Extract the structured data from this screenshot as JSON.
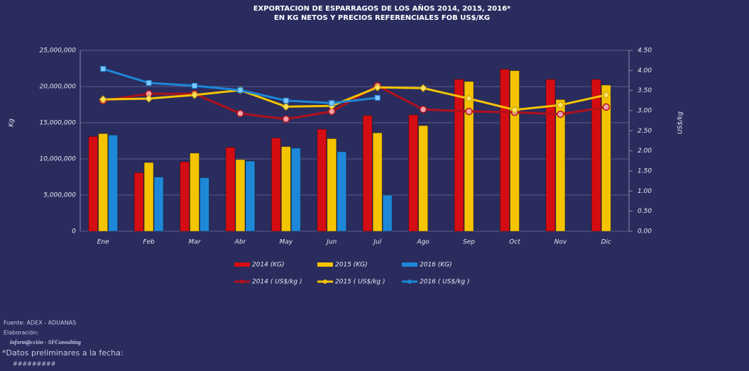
{
  "chart_data": {
    "type": "bar-line",
    "title": "EXPORTACION DE ESPARRAGOS DE LOS AÑOS 2014, 2015, 2016*",
    "subtitle": "EN KG NETOS Y PRECIOS REFERENCIALES FOB US$/KG",
    "y_label": "Kg",
    "y2_label": "US$/kg",
    "categories": [
      "Ene",
      "Feb",
      "Mar",
      "Abr",
      "May",
      "Jun",
      "Jul",
      "Ago",
      "Sep",
      "Oct",
      "Nov",
      "Dic"
    ],
    "ylim": [
      0,
      25000000
    ],
    "yticks": [
      0,
      {
        "value": 5000000,
        "label": "5,000,000"
      },
      {
        "value": 10000000,
        "label": "10,000,000"
      },
      {
        "value": 15000000,
        "label": "15,000,000"
      },
      {
        "value": 20000000,
        "label": "20,000,000"
      },
      {
        "value": 25000000,
        "label": "25,000,000"
      }
    ],
    "y2lim": [
      0,
      4.5
    ],
    "y2ticks": [
      {
        "value": 0,
        "label": "0.00"
      },
      {
        "value": 0.5,
        "label": "0.50"
      },
      {
        "value": 1,
        "label": "1.00"
      },
      {
        "value": 1.5,
        "label": "1.50"
      },
      {
        "value": 2,
        "label": "2.00"
      },
      {
        "value": 2.5,
        "label": "2.50"
      },
      {
        "value": 3,
        "label": "3.00"
      },
      {
        "value": 3.5,
        "label": "3.50"
      },
      {
        "value": 4,
        "label": "4.00"
      },
      {
        "value": 4.5,
        "label": "4.50"
      }
    ],
    "grid": true,
    "series": [
      {
        "name": "2014 (KG)",
        "kind": "bar",
        "color": "#d40d12",
        "values": [
          13100000,
          8100000,
          9600000,
          11600000,
          12900000,
          14100000,
          16000000,
          16100000,
          21000000,
          22400000,
          21000000,
          21000000
        ]
      },
      {
        "name": "2015 (KG)",
        "kind": "bar",
        "color": "#f5c400",
        "values": [
          13500000,
          9500000,
          10800000,
          9900000,
          11700000,
          12800000,
          13600000,
          14600000,
          20700000,
          22200000,
          18200000,
          20200000
        ]
      },
      {
        "name": "2016 (KG)",
        "kind": "bar",
        "color": "#1e88d8",
        "values": [
          13300000,
          7500000,
          7400000,
          9700000,
          11500000,
          11000000,
          5000000,
          null,
          null,
          null,
          null,
          null
        ]
      },
      {
        "name": "2014 ( US$/kg )",
        "kind": "line",
        "marker": "circle",
        "axis": "y2",
        "color": "#b0101a",
        "values": [
          3.25,
          3.42,
          3.42,
          2.93,
          2.79,
          2.98,
          3.62,
          3.03,
          2.98,
          2.96,
          2.91,
          3.09
        ]
      },
      {
        "name": "2015 ( US$/kg )",
        "kind": "line",
        "marker": "diamond",
        "axis": "y2",
        "color": "#f5c400",
        "values": [
          3.28,
          3.3,
          3.39,
          3.51,
          3.1,
          3.12,
          3.58,
          3.56,
          3.3,
          3.02,
          3.14,
          3.39
        ]
      },
      {
        "name": "2016 ( US$/kg )",
        "kind": "line",
        "marker": "square",
        "axis": "y2",
        "color": "#1e88d8",
        "values": [
          4.04,
          3.69,
          3.62,
          3.51,
          3.25,
          3.19,
          3.32,
          null,
          null,
          null,
          null,
          null
        ]
      }
    ]
  },
  "footer": {
    "source": "Fuente:  ADEX - ADUANAS",
    "elaboration": "Elaboración:",
    "author": "inform@cción -  SFConsulting",
    "note": "*Datos preliminares a la fecha:",
    "date": "#########"
  }
}
